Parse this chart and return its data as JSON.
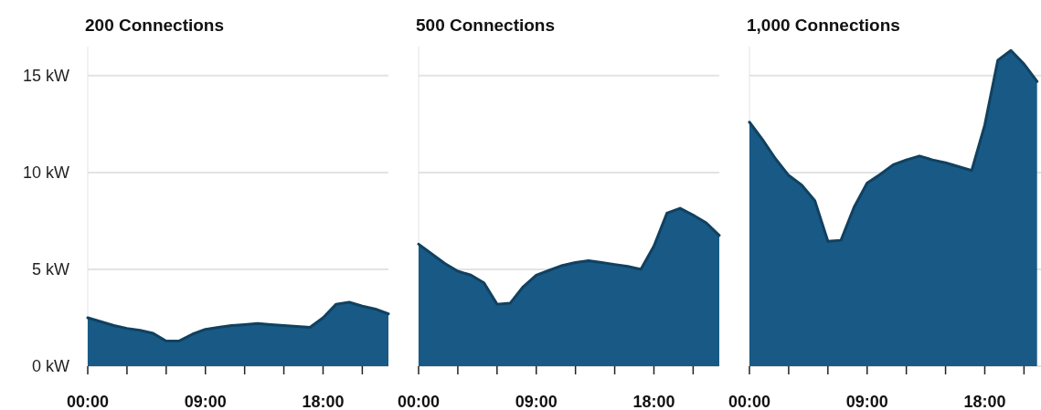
{
  "chart_data": [
    {
      "type": "area",
      "title": "200 Connections",
      "x": [
        0,
        1,
        2,
        3,
        4,
        5,
        6,
        7,
        8,
        9,
        10,
        11,
        12,
        13,
        14,
        15,
        16,
        17,
        18,
        19,
        20,
        21,
        22,
        23
      ],
      "series": [
        {
          "color": "#185a85",
          "values": [
            2.5,
            2.3,
            2.1,
            1.95,
            1.85,
            1.7,
            1.3,
            1.3,
            1.65,
            1.9,
            2.0,
            2.1,
            2.15,
            2.2,
            2.15,
            2.1,
            2.05,
            2.0,
            2.5,
            3.2,
            3.3,
            3.1,
            2.95,
            2.7
          ]
        }
      ],
      "xlim": [
        0,
        23
      ],
      "ylim": [
        0,
        16.5
      ],
      "xticks": [
        {
          "value": 0,
          "label": "00:00"
        },
        {
          "value": 3,
          "label": null
        },
        {
          "value": 6,
          "label": null
        },
        {
          "value": 9,
          "label": "09:00"
        },
        {
          "value": 12,
          "label": null
        },
        {
          "value": 15,
          "label": null
        },
        {
          "value": 18,
          "label": "18:00"
        },
        {
          "value": 21,
          "label": null
        }
      ],
      "yticks": [
        {
          "value": 0,
          "label": "0 kW"
        },
        {
          "value": 5,
          "label": "5 kW"
        },
        {
          "value": 10,
          "label": "10 kW"
        },
        {
          "value": 15,
          "label": "15 kW"
        }
      ],
      "grid": "y"
    },
    {
      "type": "area",
      "title": "500 Connections",
      "x": [
        0,
        1,
        2,
        3,
        4,
        5,
        6,
        7,
        8,
        9,
        10,
        11,
        12,
        13,
        14,
        15,
        16,
        17,
        18,
        19,
        20,
        21,
        22,
        23
      ],
      "series": [
        {
          "color": "#185a85",
          "values": [
            6.3,
            5.8,
            5.3,
            4.9,
            4.7,
            4.3,
            3.2,
            3.25,
            4.1,
            4.7,
            4.95,
            5.2,
            5.35,
            5.45,
            5.35,
            5.25,
            5.15,
            5.0,
            6.2,
            7.9,
            8.15,
            7.8,
            7.4,
            6.75
          ]
        }
      ],
      "xlim": [
        0,
        23
      ],
      "ylim": [
        0,
        16.5
      ],
      "xticks": [
        {
          "value": 0,
          "label": "00:00"
        },
        {
          "value": 3,
          "label": null
        },
        {
          "value": 6,
          "label": null
        },
        {
          "value": 9,
          "label": "09:00"
        },
        {
          "value": 12,
          "label": null
        },
        {
          "value": 15,
          "label": null
        },
        {
          "value": 18,
          "label": "18:00"
        },
        {
          "value": 21,
          "label": null
        }
      ],
      "yticks": [
        0,
        5,
        10,
        15
      ],
      "grid": "y",
      "tick_labels": "x"
    },
    {
      "type": "area",
      "title": "1,000 Connections",
      "x": [
        0,
        1,
        2,
        3,
        4,
        5,
        6,
        7,
        8,
        9,
        10,
        11,
        12,
        13,
        14,
        15,
        16,
        17,
        18,
        19,
        20,
        21,
        22
      ],
      "series": [
        {
          "color": "#185a85",
          "values": [
            12.6,
            11.7,
            10.7,
            9.85,
            9.35,
            8.55,
            6.45,
            6.5,
            8.2,
            9.45,
            9.9,
            10.4,
            10.65,
            10.85,
            10.65,
            10.5,
            10.3,
            10.1,
            12.45,
            15.8,
            16.3,
            15.6,
            14.7
          ]
        }
      ],
      "xlim": [
        0,
        23
      ],
      "ylim": [
        0,
        16.5
      ],
      "xticks": [
        {
          "value": 0,
          "label": "00:00"
        },
        {
          "value": 3,
          "label": null
        },
        {
          "value": 6,
          "label": null
        },
        {
          "value": 9,
          "label": "09:00"
        },
        {
          "value": 12,
          "label": null
        },
        {
          "value": 15,
          "label": null
        },
        {
          "value": 18,
          "label": "18:00"
        },
        {
          "value": 21,
          "label": null
        }
      ],
      "yticks": [
        0,
        5,
        10,
        15
      ],
      "grid": "y",
      "tick_labels": "x"
    }
  ]
}
